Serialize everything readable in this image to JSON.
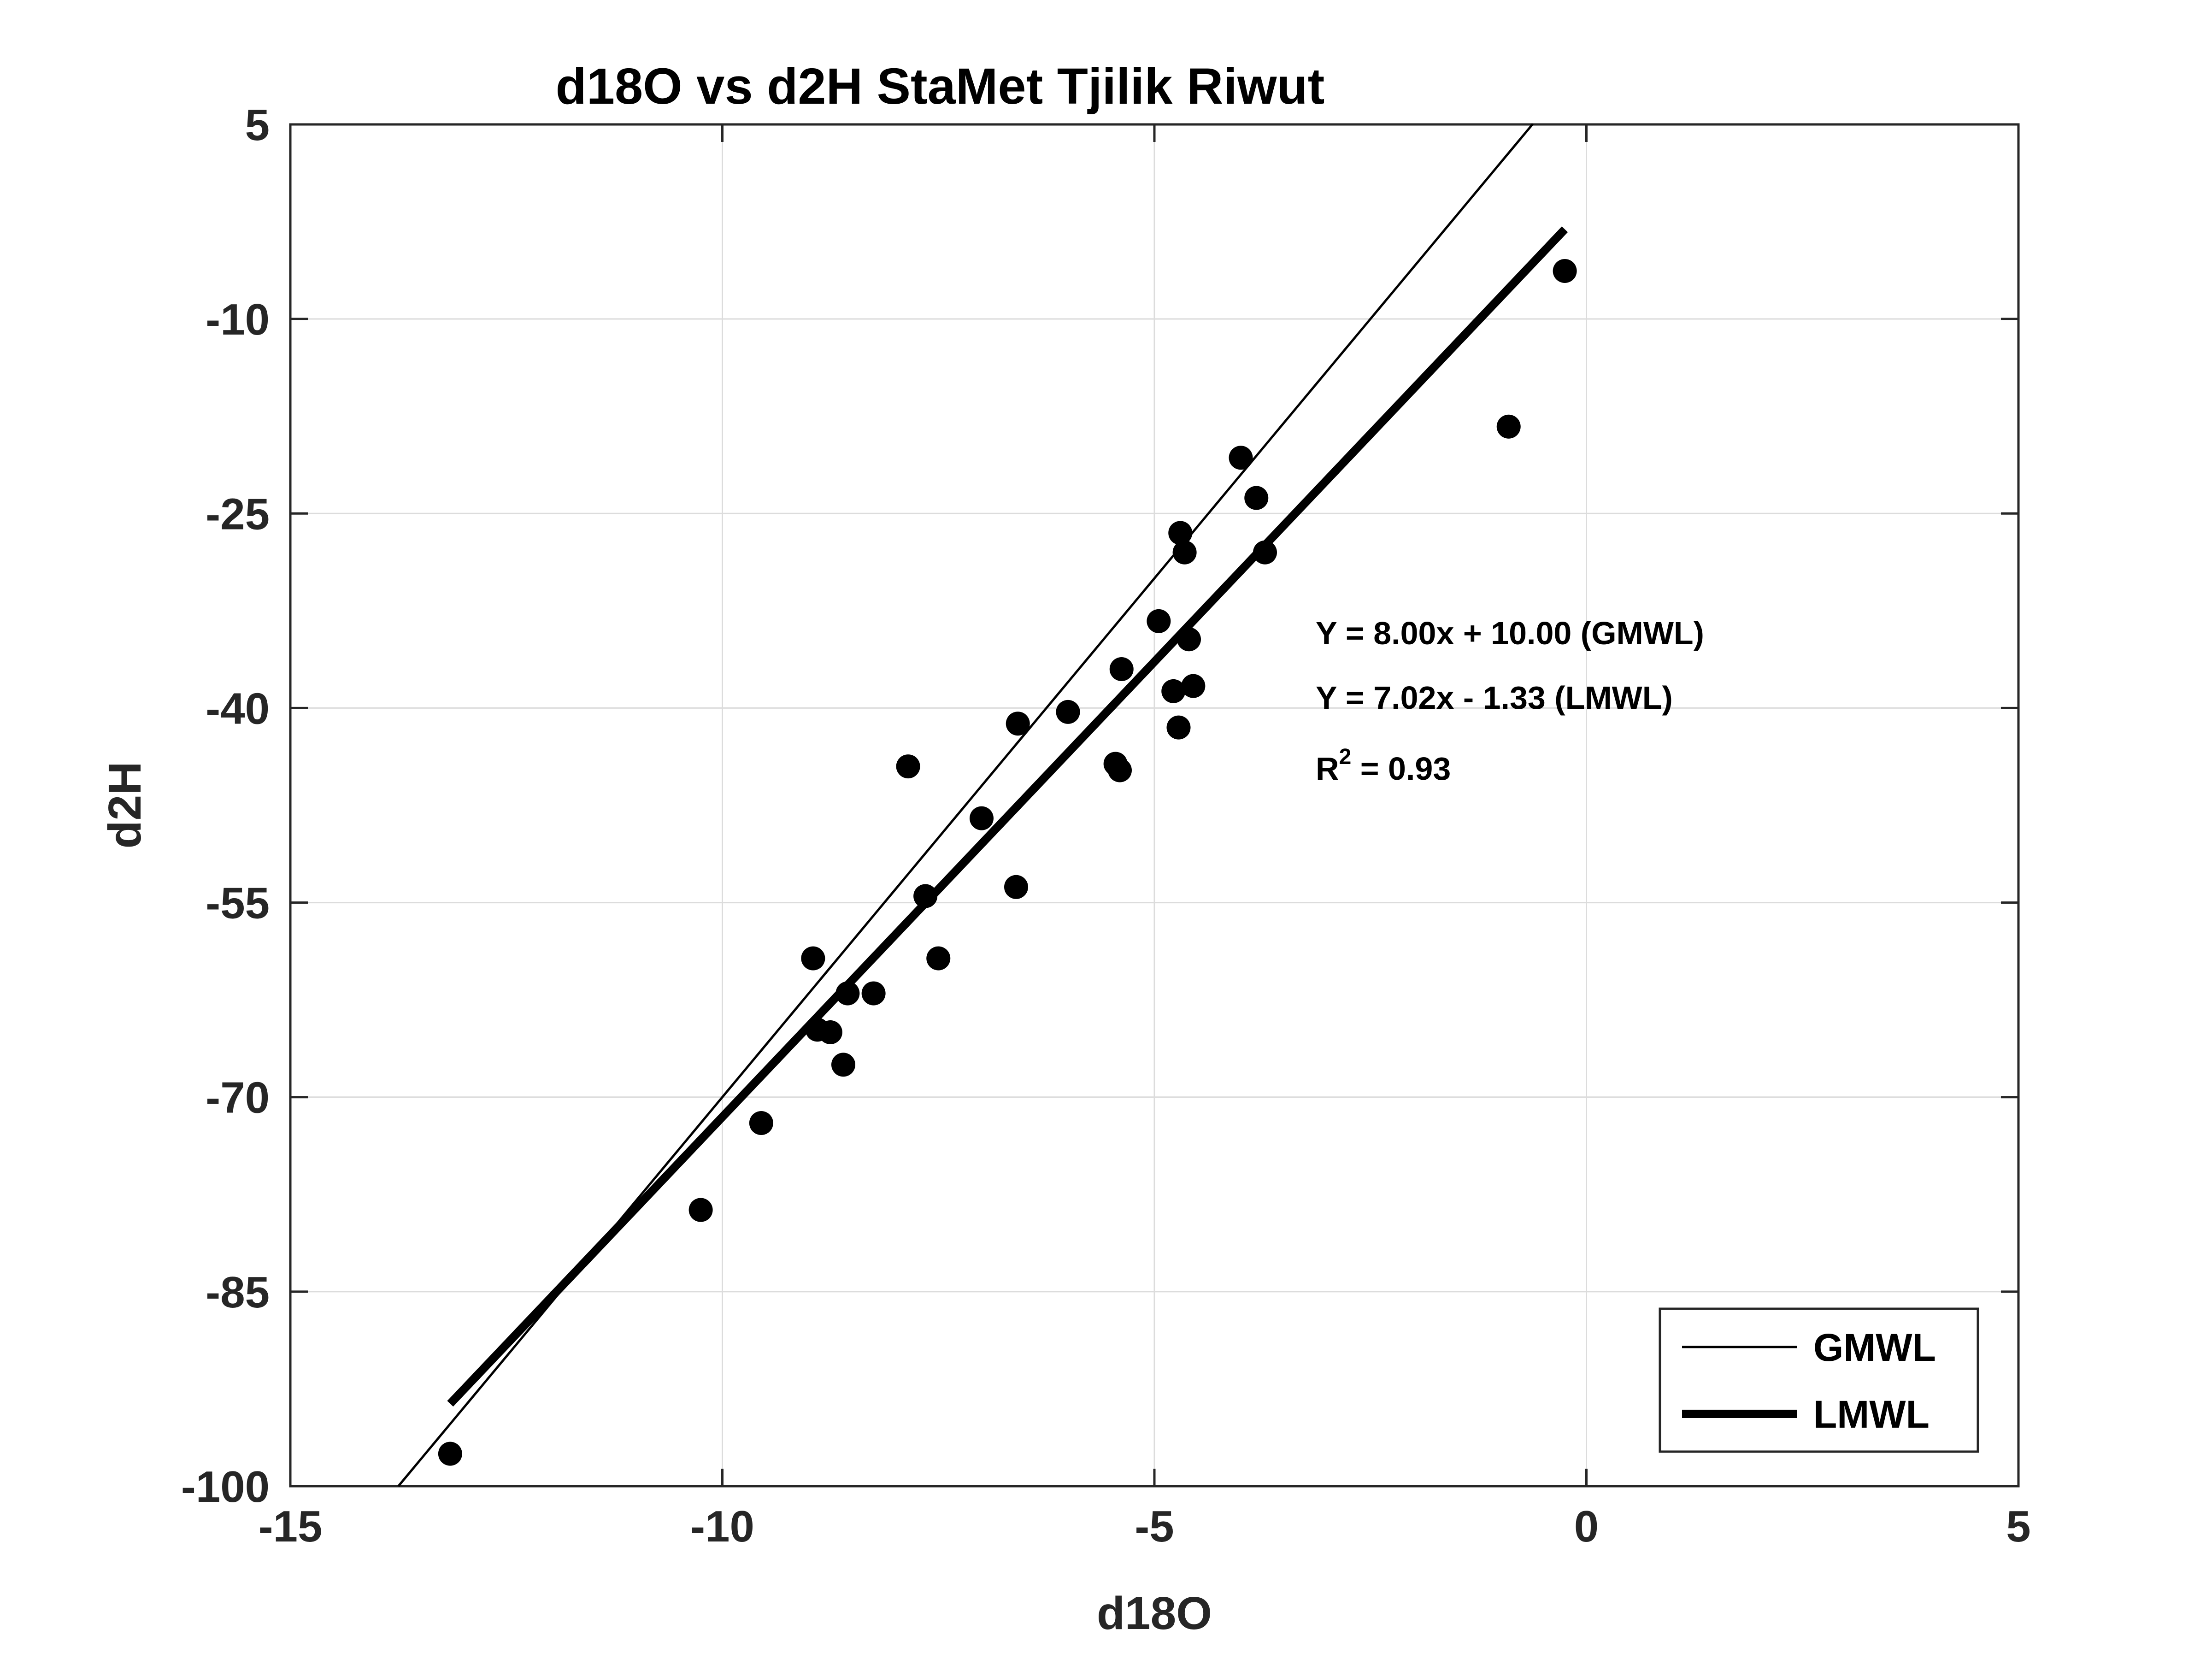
{
  "chart_data": {
    "type": "scatter",
    "title": "d18O vs d2H StaMet Tjilik Riwut",
    "xlabel": "d18O",
    "ylabel": "d2H",
    "xlim": [
      -15,
      5
    ],
    "ylim": [
      -100,
      5
    ],
    "xticks": [
      -15,
      -10,
      -5,
      0,
      5
    ],
    "yticks": [
      5,
      -10,
      -25,
      -40,
      -55,
      -70,
      -85,
      -100
    ],
    "grid": true,
    "points": {
      "x": [
        -13.15,
        -10.25,
        -9.55,
        -8.95,
        -8.9,
        -8.75,
        -8.6,
        -8.55,
        -8.25,
        -7.85,
        -7.65,
        -7.5,
        -7.0,
        -6.6,
        -6.58,
        -6.0,
        -5.45,
        -5.4,
        -5.38,
        -4.95,
        -4.78,
        -4.72,
        -4.7,
        -4.65,
        -4.6,
        -4.55,
        -4.0,
        -3.82,
        -3.72,
        -0.9,
        -0.25
      ],
      "y": [
        -97.5,
        -78.7,
        -72.0,
        -59.3,
        -64.8,
        -65.0,
        -67.5,
        -62.0,
        -62.0,
        -44.5,
        -54.5,
        -59.3,
        -48.5,
        -53.8,
        -41.2,
        -40.3,
        -44.3,
        -44.8,
        -37.0,
        -33.3,
        -38.7,
        -41.5,
        -26.5,
        -28.0,
        -34.7,
        -38.3,
        -20.7,
        -23.8,
        -28.0,
        -18.3,
        -6.3
      ]
    },
    "series": [
      {
        "name": "GMWL",
        "slope": 8.0,
        "intercept": 10.0,
        "x_range": [
          -13.75,
          -0.62
        ],
        "color": "#000000",
        "style": "thin"
      },
      {
        "name": "LMWL",
        "slope": 7.02,
        "intercept": -1.33,
        "x_range": [
          -13.15,
          -0.25
        ],
        "color": "#000000",
        "style": "thick"
      }
    ],
    "annotations": [
      {
        "text": "Y = 8.00x + 10.00 (GMWL)"
      },
      {
        "text": "Y = 7.02x - 1.33 (LMWL)"
      },
      {
        "text_main": "R",
        "sup": "2",
        "text_rest": " = 0.93"
      }
    ],
    "legend": {
      "position": "bottom-right",
      "entries": [
        "GMWL",
        "LMWL"
      ]
    }
  },
  "colors": {
    "axis": "#262626",
    "grid": "#dcdcdc",
    "marker": "#000000"
  }
}
